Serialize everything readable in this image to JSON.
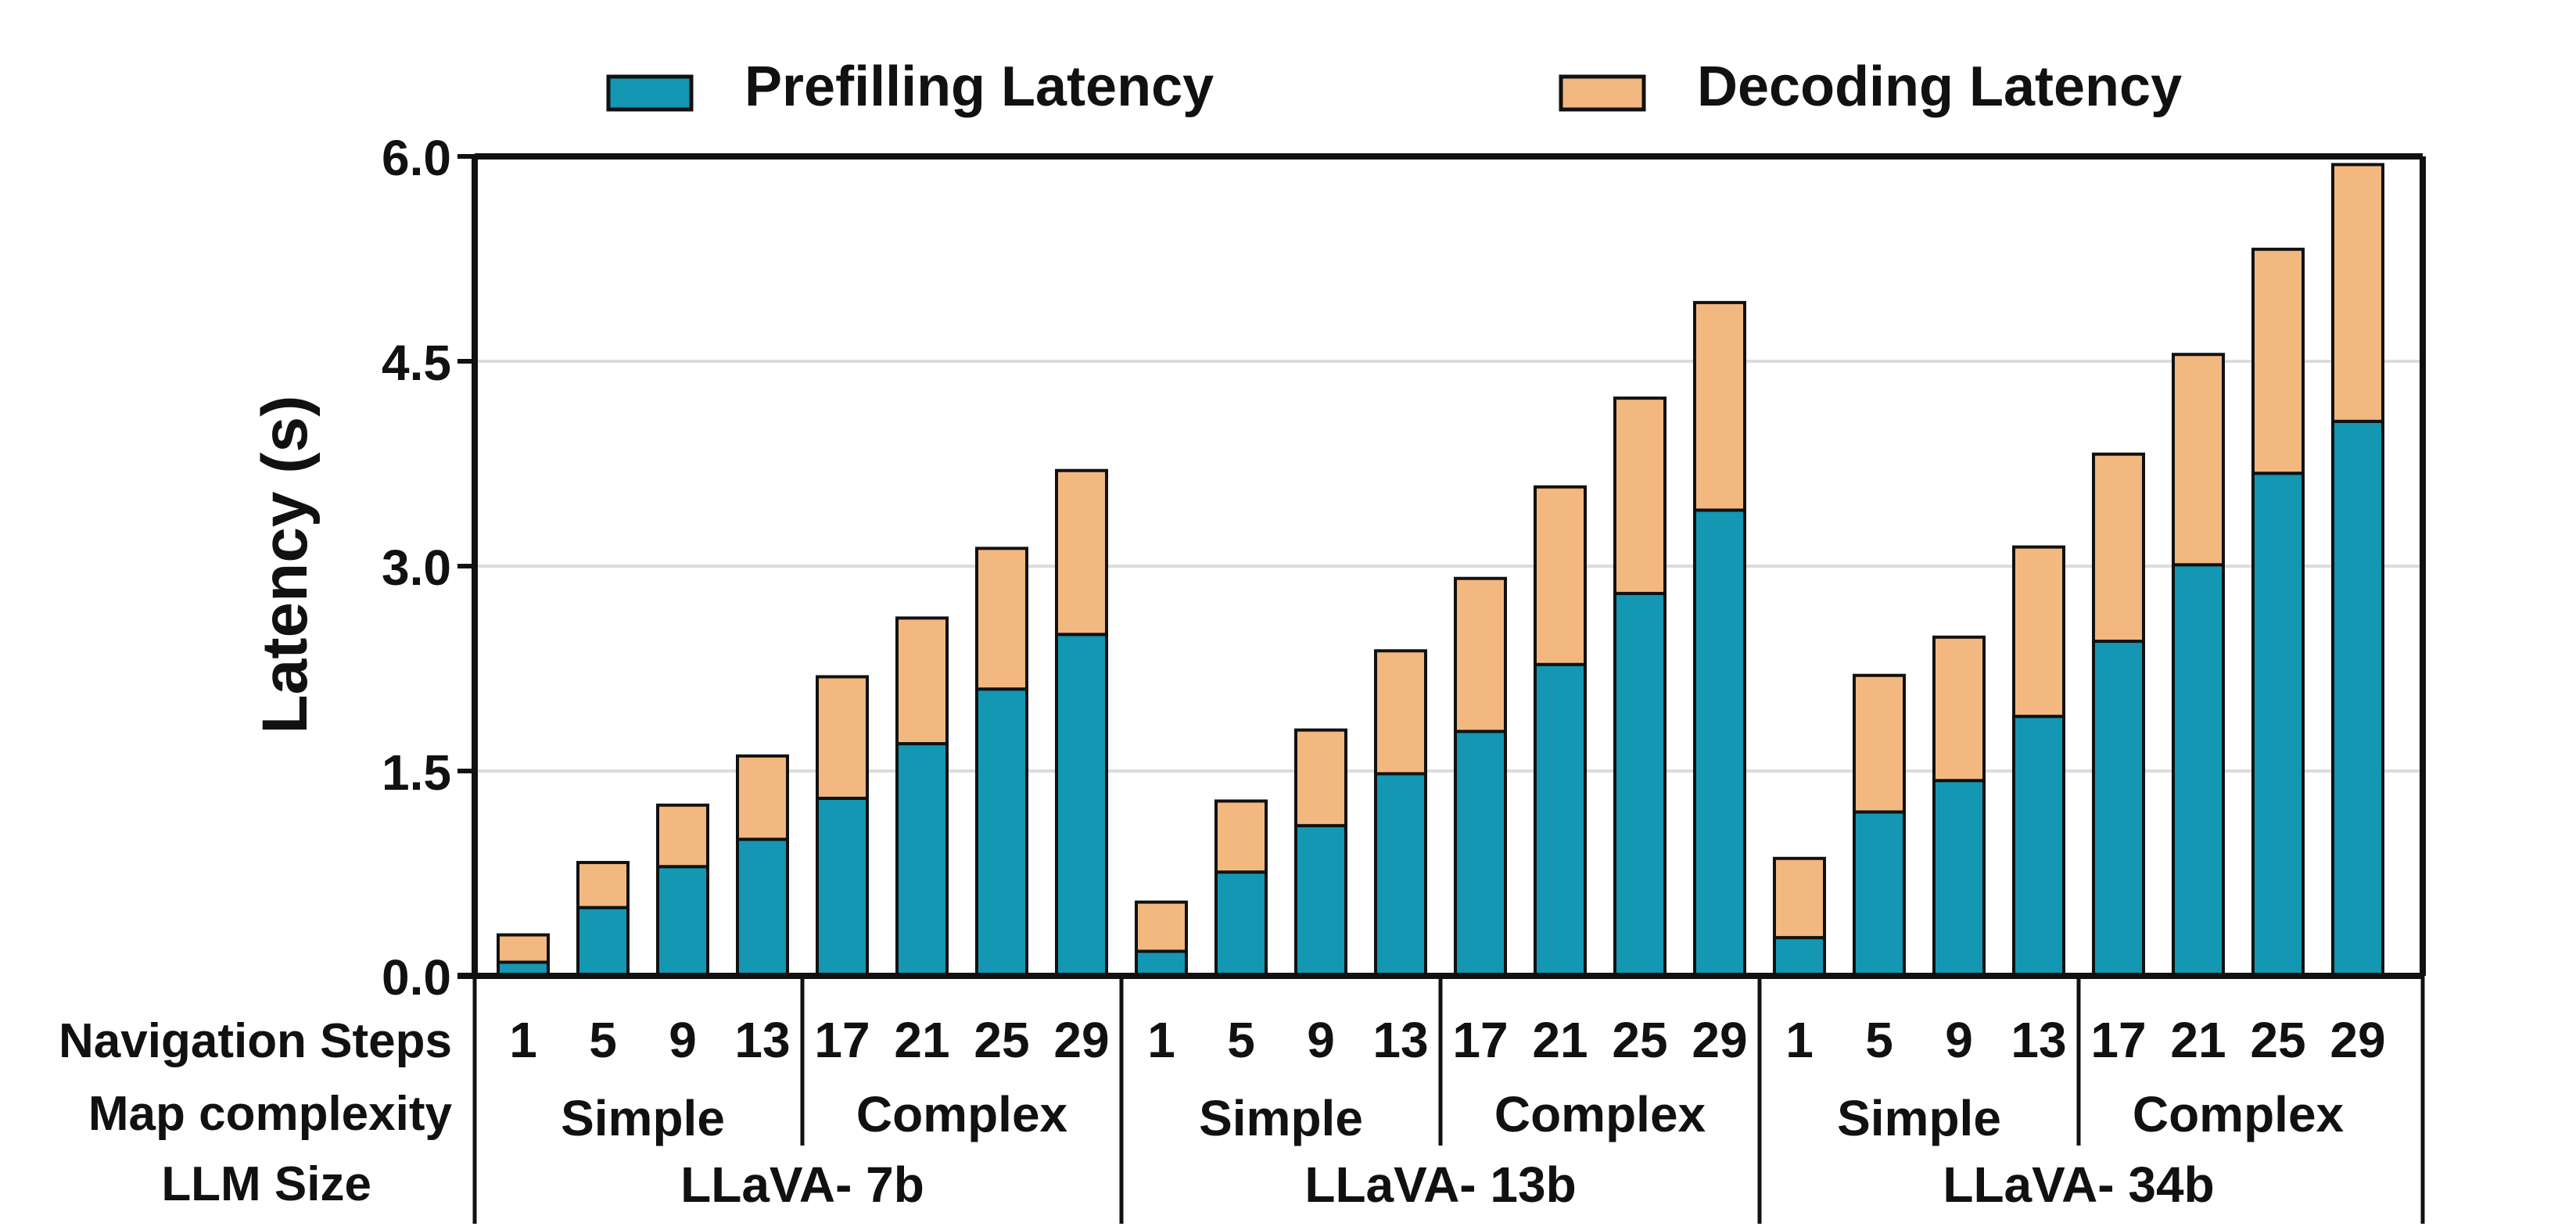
{
  "chart_data": {
    "type": "bar",
    "stacked": true,
    "ylabel": "Latency (s)",
    "ylim": [
      0,
      6.0
    ],
    "yticks": [
      "0.0",
      "1.5",
      "3.0",
      "4.5",
      "6.0"
    ],
    "grid": true,
    "legend_position": "top",
    "colors": {
      "prefill": "#1497b3",
      "decode": "#f2b880",
      "grid": "#dcdcdc"
    },
    "row_labels": {
      "steps": "Navigation Steps",
      "complexity": "Map complexity",
      "size": "LLM Size"
    },
    "steps": [
      "1",
      "5",
      "9",
      "13",
      "17",
      "21",
      "25",
      "29"
    ],
    "complexity_labels": [
      "Simple",
      "Complex"
    ],
    "models": [
      {
        "name": "LLaVA- 7b",
        "prefill": [
          0.1,
          0.5,
          0.8,
          1.0,
          1.3,
          1.7,
          2.1,
          2.5
        ],
        "decode": [
          0.2,
          0.33,
          0.45,
          0.61,
          0.89,
          0.92,
          1.03,
          1.2
        ]
      },
      {
        "name": "LLaVA- 13b",
        "prefill": [
          0.18,
          0.76,
          1.1,
          1.48,
          1.79,
          2.28,
          2.8,
          3.41
        ],
        "decode": [
          0.36,
          0.52,
          0.7,
          0.9,
          1.12,
          1.3,
          1.43,
          1.52
        ]
      },
      {
        "name": "LLaVA- 34b",
        "prefill": [
          0.28,
          1.2,
          1.43,
          1.9,
          2.45,
          3.01,
          3.68,
          4.06
        ],
        "decode": [
          0.58,
          1.0,
          1.05,
          1.24,
          1.37,
          1.54,
          1.64,
          1.88
        ]
      }
    ],
    "series": [
      {
        "name": "Prefilling Latency"
      },
      {
        "name": "Decoding Latency"
      }
    ]
  }
}
